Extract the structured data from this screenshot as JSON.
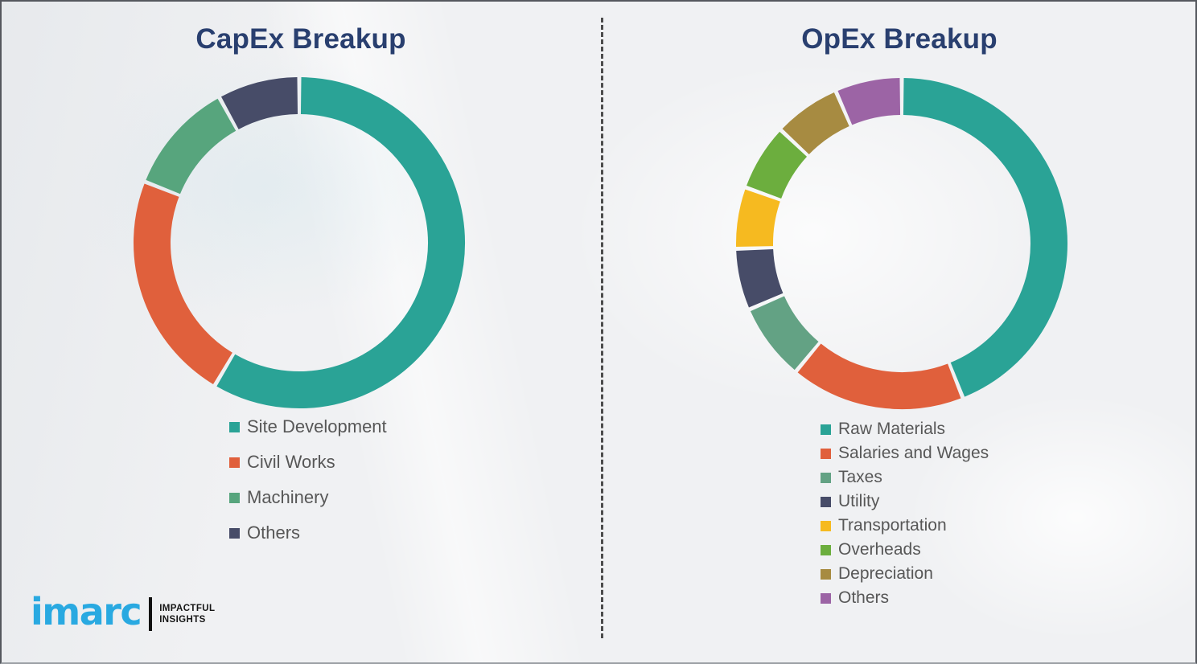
{
  "chart_data": [
    {
      "type": "pie",
      "subtype": "donut",
      "title": "CapEx Breakup",
      "unit": "percent-of-total",
      "legend_position": "bottom",
      "start_angle_deg": 0,
      "direction": "clockwise",
      "segments": [
        {
          "label": "Site Development",
          "value": 58.5,
          "color": "#2AA396"
        },
        {
          "label": "Civil Works",
          "value": 22.5,
          "color": "#E0603C"
        },
        {
          "label": "Machinery",
          "value": 11.0,
          "color": "#57A57D"
        },
        {
          "label": "Others",
          "value": 8.0,
          "color": "#474C68"
        }
      ]
    },
    {
      "type": "pie",
      "subtype": "donut",
      "title": "OpEx Breakup",
      "unit": "percent-of-total",
      "legend_position": "bottom",
      "start_angle_deg": 0,
      "direction": "clockwise",
      "segments": [
        {
          "label": "Raw Materials",
          "value": 44.0,
          "color": "#2AA396"
        },
        {
          "label": "Salaries and Wages",
          "value": 17.0,
          "color": "#E0603C"
        },
        {
          "label": "Taxes",
          "value": 7.5,
          "color": "#63A284"
        },
        {
          "label": "Utility",
          "value": 6.0,
          "color": "#474C68"
        },
        {
          "label": "Transportation",
          "value": 6.0,
          "color": "#F6BA20"
        },
        {
          "label": "Overheads",
          "value": 6.5,
          "color": "#6CAE3E"
        },
        {
          "label": "Depreciation",
          "value": 6.5,
          "color": "#A78B41"
        },
        {
          "label": "Others",
          "value": 6.5,
          "color": "#9C64A5"
        }
      ]
    }
  ],
  "logo": {
    "brand": "imarc",
    "tagline_line1": "IMPACTFUL",
    "tagline_line2": "INSIGHTS",
    "brand_color": "#29A9E1"
  },
  "style": {
    "title_color": "#293F6F",
    "legend_text_color": "#575757",
    "divider_color": "#4C4C4C",
    "background_color": "#F0F1F3"
  }
}
